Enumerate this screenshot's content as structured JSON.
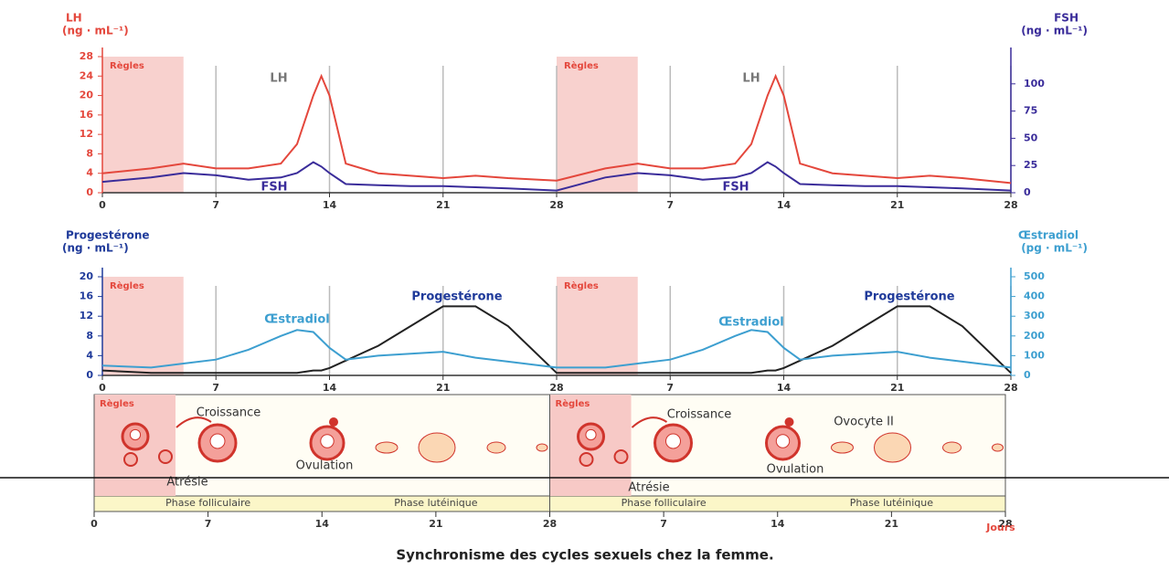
{
  "chart_data": [
    {
      "type": "line",
      "y_label": "LH",
      "y_unit": "(ng · mL⁻¹)",
      "y2_label": "FSH",
      "y2_unit": "(ng · mL⁻¹)",
      "x": [
        0,
        3,
        5,
        7,
        9,
        11,
        12,
        13,
        13.5,
        14,
        15,
        17,
        19,
        21,
        23,
        25,
        28,
        31,
        33,
        35,
        37,
        39,
        40,
        41,
        41.5,
        42,
        43,
        45,
        47,
        49,
        51,
        53,
        56
      ],
      "xlim": [
        0,
        56
      ],
      "xticks": [
        0,
        7,
        14,
        21,
        28,
        {
          "value": 35,
          "label": "7"
        },
        {
          "value": 42,
          "label": "14"
        },
        {
          "value": 49,
          "label": "21"
        },
        {
          "value": 56,
          "label": "28"
        }
      ],
      "ylim": [
        0,
        28
      ],
      "yticks": [
        0,
        4,
        8,
        12,
        16,
        20,
        24,
        28
      ],
      "y2lim": [
        0,
        125
      ],
      "y2ticks": [
        0,
        25,
        50,
        75,
        100
      ],
      "series": [
        {
          "name": "LH",
          "color": "#e4473c",
          "values": [
            4,
            5,
            6,
            5,
            5,
            6,
            10,
            20,
            24,
            20,
            6,
            4,
            3.5,
            3,
            3.5,
            3,
            2.5,
            5,
            6,
            5,
            5,
            6,
            10,
            20,
            24,
            20,
            6,
            4,
            3.5,
            3,
            3.5,
            3,
            2
          ]
        },
        {
          "name": "FSH",
          "color": "#3a2c9a",
          "axis": "y2",
          "values": [
            10,
            14,
            18,
            16,
            12,
            14,
            18,
            28,
            24,
            18,
            8,
            7,
            6,
            6,
            5,
            4,
            2,
            14,
            18,
            16,
            12,
            14,
            18,
            28,
            24,
            18,
            8,
            7,
            6,
            6,
            5,
            4,
            2
          ]
        }
      ],
      "regles": [
        "Règles",
        "Règles"
      ],
      "annotations": [
        "LH",
        "LH",
        "FSH",
        "FSH"
      ]
    },
    {
      "type": "line",
      "y_label": "Progestérone",
      "y_unit": "(ng · mL⁻¹)",
      "y2_label": "Œstradiol",
      "y2_unit": "(pg · mL⁻¹)",
      "x": [
        0,
        3,
        5,
        7,
        9,
        11,
        12,
        13,
        13.5,
        14,
        15,
        17,
        19,
        21,
        23,
        25,
        28,
        31,
        33,
        35,
        37,
        39,
        40,
        41,
        41.5,
        42,
        43,
        45,
        47,
        49,
        51,
        53,
        56
      ],
      "xlim": [
        0,
        56
      ],
      "xticks": [
        0,
        7,
        14,
        21,
        28,
        {
          "value": 35,
          "label": "7"
        },
        {
          "value": 42,
          "label": "14"
        },
        {
          "value": 49,
          "label": "21"
        },
        {
          "value": 56,
          "label": "28"
        }
      ],
      "ylim": [
        0,
        20
      ],
      "yticks": [
        0,
        4,
        8,
        12,
        16,
        20
      ],
      "y2lim": [
        0,
        500
      ],
      "y2ticks": [
        0,
        100,
        200,
        300,
        400,
        500
      ],
      "series": [
        {
          "name": "Progestérone",
          "color": "#222222",
          "values": [
            1,
            0.5,
            0.5,
            0.5,
            0.5,
            0.5,
            0.5,
            1,
            1,
            1.5,
            3,
            6,
            10,
            14,
            14,
            10,
            0.5,
            0.5,
            0.5,
            0.5,
            0.5,
            0.5,
            0.5,
            1,
            1,
            1.5,
            3,
            6,
            10,
            14,
            14,
            10,
            0.5
          ]
        },
        {
          "name": "Œstradiol",
          "color": "#3d9fd0",
          "axis": "y2",
          "values": [
            50,
            40,
            60,
            80,
            130,
            200,
            230,
            220,
            180,
            140,
            80,
            100,
            110,
            120,
            90,
            70,
            40,
            40,
            60,
            80,
            130,
            200,
            230,
            220,
            180,
            140,
            80,
            100,
            110,
            120,
            90,
            70,
            40
          ]
        }
      ],
      "regles": [
        "Règles",
        "Règles"
      ],
      "annotations": [
        "Œstradiol",
        "Progestérone",
        "Œstradiol",
        "Progestérone"
      ]
    }
  ],
  "ovary_panel": {
    "regles": [
      "Règles",
      "Règles"
    ],
    "labels": [
      "Croissance",
      "Atrésie",
      "Ovulation",
      "Croissance",
      "Atrésie",
      "Ovulation",
      "Ovocyte II"
    ],
    "phases": [
      "Phase folliculaire",
      "Phase lutéinique",
      "Phase folliculaire",
      "Phase lutéinique"
    ],
    "xlim": [
      0,
      56
    ],
    "xticks": [
      0,
      7,
      14,
      21,
      28,
      {
        "value": 35,
        "label": "7"
      },
      {
        "value": 42,
        "label": "14"
      },
      {
        "value": 49,
        "label": "21"
      },
      {
        "value": 56,
        "label": "28"
      }
    ],
    "x_label": "Jours"
  },
  "caption": "Synchronisme des cycles sexuels chez la femme."
}
